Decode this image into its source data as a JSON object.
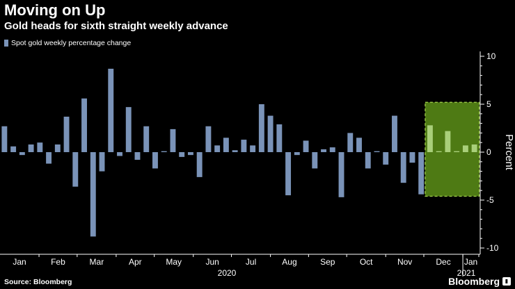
{
  "header": {
    "title": "Moving on Up",
    "subtitle": "Gold heads for sixth straight weekly advance"
  },
  "legend": {
    "label": "Spot gold weekly percentage change"
  },
  "footer": {
    "source": "Source: Bloomberg",
    "brand": "Bloomberg"
  },
  "colors": {
    "bar": "#7a93b8",
    "highlight_bar": "#a9cf7a",
    "highlight_fill": "#4e7a14",
    "highlight_border": "#a3d44a",
    "axis": "#ffffff",
    "background": "#000000"
  },
  "chart_data": {
    "type": "bar",
    "title": "Moving on Up",
    "subtitle": "Gold heads for sixth straight weekly advance",
    "ylabel": "Percent",
    "ylim": [
      -10,
      10
    ],
    "yticks": [
      10,
      5,
      0,
      -5,
      -10
    ],
    "month_labels": [
      "Jan",
      "Feb",
      "Mar",
      "Apr",
      "May",
      "Jun",
      "Jul",
      "Aug",
      "Sep",
      "Oct",
      "Nov",
      "Dec",
      "Jan"
    ],
    "year_labels": [
      "2020",
      "2021"
    ],
    "series": [
      {
        "name": "Spot gold weekly percentage change",
        "values": [
          2.7,
          0.6,
          -0.3,
          0.8,
          1.0,
          -1.2,
          0.8,
          3.7,
          -3.6,
          5.6,
          -8.8,
          -2.0,
          8.7,
          -0.4,
          4.7,
          -0.8,
          2.7,
          -1.7,
          0.1,
          2.4,
          -0.5,
          -0.3,
          -2.6,
          2.7,
          0.7,
          1.5,
          0.2,
          1.3,
          0.7,
          5.0,
          3.8,
          2.9,
          -4.5,
          -0.3,
          1.2,
          -1.7,
          0.3,
          0.5,
          -4.7,
          2.0,
          1.5,
          -1.7,
          0.1,
          -1.3,
          3.8,
          -3.2,
          -1.1,
          -4.4,
          2.8,
          0.1,
          2.2,
          0.1,
          0.7,
          0.8
        ]
      }
    ],
    "highlight": {
      "start_index": 48,
      "end_index": 53,
      "description": "sixth straight weekly advance"
    }
  }
}
